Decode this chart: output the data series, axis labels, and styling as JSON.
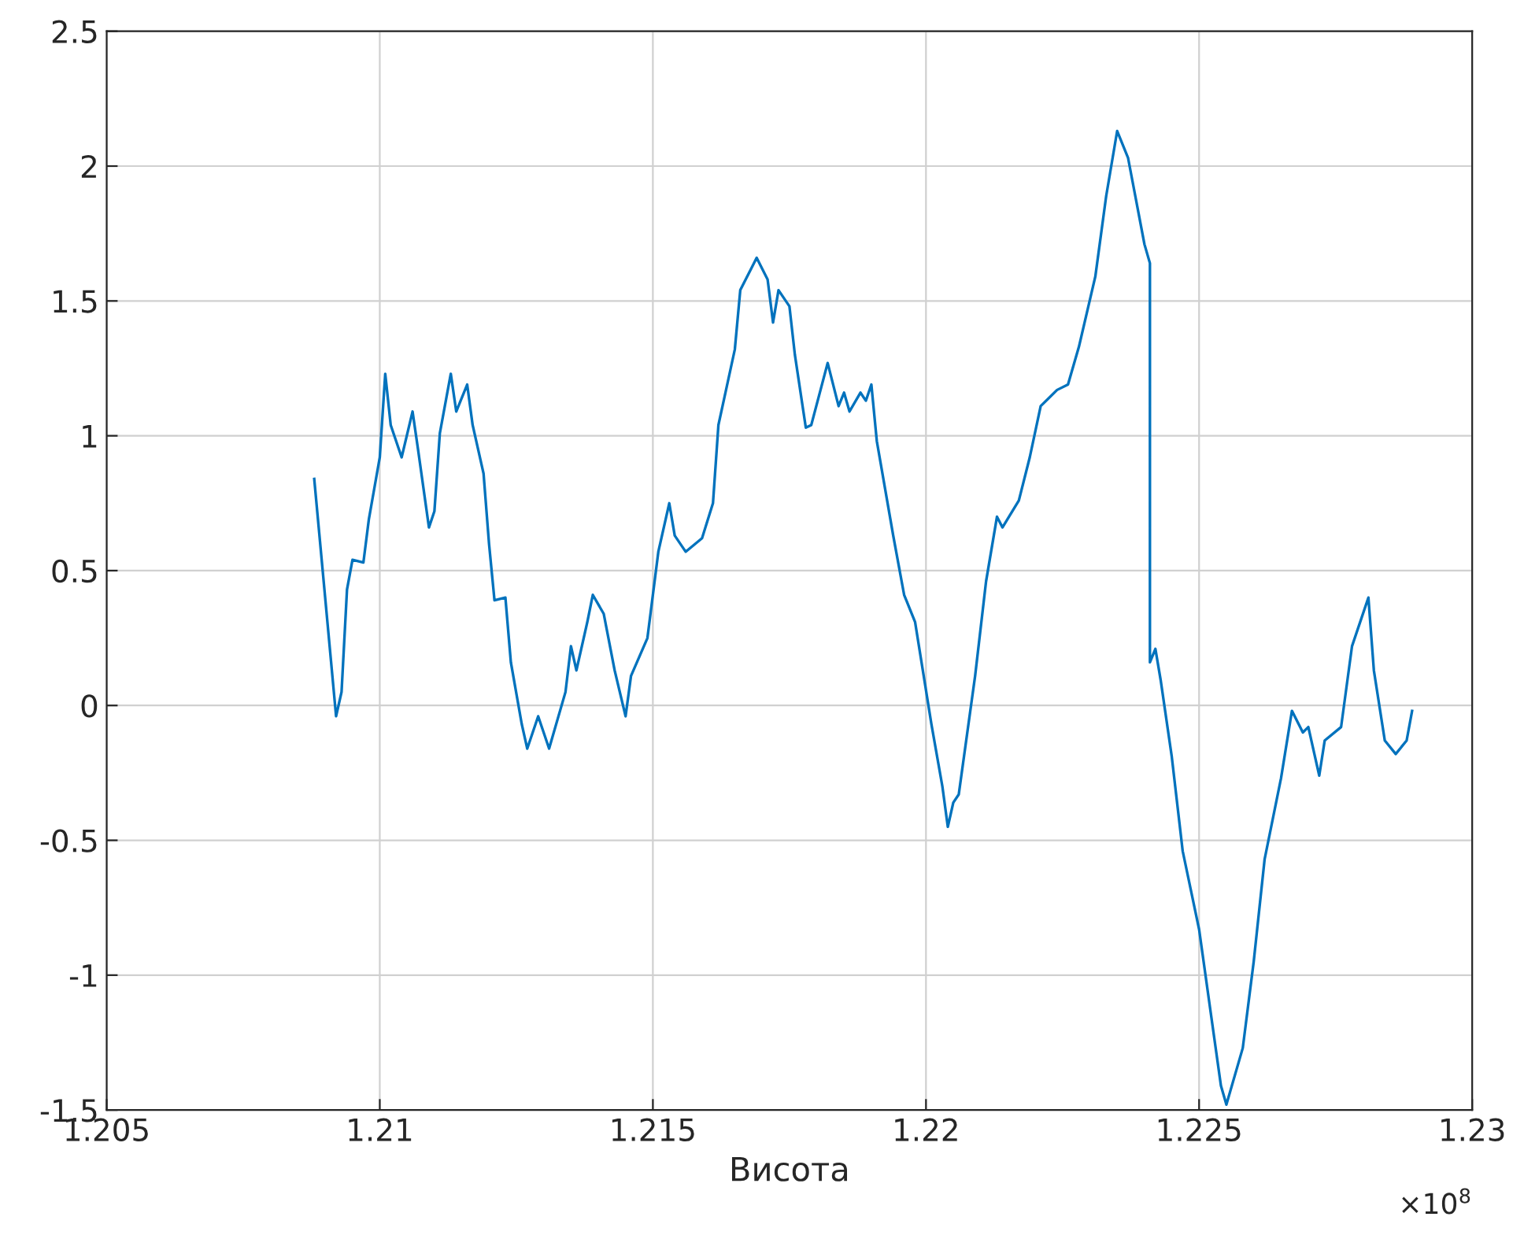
{
  "chart_data": {
    "type": "line",
    "xlabel": "Висота",
    "annotations": [
      "×10$^{8}$"
    ],
    "xlim": [
      1.205,
      1.23
    ],
    "xticks": [
      1.205,
      1.21,
      1.215,
      1.22,
      1.225,
      1.23
    ],
    "ylim": [
      -1.5,
      2.5
    ],
    "yticks": [
      -1.5,
      -1,
      -0.5,
      0,
      0.5,
      1,
      1.5,
      2,
      2.5
    ],
    "grid": true,
    "marker": "none",
    "line_style": "solid",
    "series": [
      {
        "color": "#0072bd",
        "x": [
          1.2088,
          1.209,
          1.2092,
          1.2093,
          1.2094,
          1.2095,
          1.2097,
          1.2098,
          1.21,
          1.2101,
          1.2102,
          1.2104,
          1.2106,
          1.2107,
          1.2109,
          1.211,
          1.2111,
          1.2113,
          1.2114,
          1.2116,
          1.2117,
          1.2119,
          1.212,
          1.2121,
          1.2123,
          1.2124,
          1.2126,
          1.2127,
          1.2129,
          1.2131,
          1.2134,
          1.2135,
          1.2136,
          1.2138,
          1.2139,
          1.2141,
          1.2143,
          1.2145,
          1.2146,
          1.2149,
          1.2151,
          1.2153,
          1.2154,
          1.2156,
          1.2159,
          1.2161,
          1.2162,
          1.2165,
          1.2166,
          1.2168,
          1.2169,
          1.2171,
          1.2172,
          1.2173,
          1.2175,
          1.2176,
          1.2178,
          1.2179,
          1.2182,
          1.2184,
          1.2185,
          1.2186,
          1.2188,
          1.2189,
          1.219,
          1.2191,
          1.2194,
          1.2196,
          1.2198,
          1.2201,
          1.2203,
          1.2204,
          1.2205,
          1.2206,
          1.2209,
          1.2211,
          1.2213,
          1.2214,
          1.2217,
          1.2219,
          1.2221,
          1.2224,
          1.2226,
          1.2228,
          1.2231,
          1.2233,
          1.2235,
          1.2237,
          1.224,
          1.2241,
          1.2241,
          1.2242,
          1.2243,
          1.2245,
          1.2247,
          1.225,
          1.2252,
          1.2254,
          1.2255,
          1.2258,
          1.226,
          1.2262,
          1.2265,
          1.2267,
          1.2269,
          1.227,
          1.2272,
          1.2273,
          1.2276,
          1.2278,
          1.2281,
          1.2282,
          1.2284,
          1.2286,
          1.2288,
          1.2289
        ],
        "values": [
          0.84,
          0.4,
          -0.04,
          0.05,
          0.43,
          0.54,
          0.53,
          0.69,
          0.92,
          1.23,
          1.04,
          0.92,
          1.09,
          0.95,
          0.66,
          0.72,
          1.01,
          1.23,
          1.09,
          1.19,
          1.04,
          0.86,
          0.6,
          0.39,
          0.4,
          0.16,
          -0.07,
          -0.16,
          -0.04,
          -0.16,
          0.05,
          0.22,
          0.13,
          0.31,
          0.41,
          0.34,
          0.13,
          -0.04,
          0.11,
          0.25,
          0.57,
          0.75,
          0.63,
          0.57,
          0.62,
          0.75,
          1.04,
          1.32,
          1.54,
          1.62,
          1.66,
          1.58,
          1.42,
          1.54,
          1.48,
          1.3,
          1.03,
          1.04,
          1.27,
          1.11,
          1.16,
          1.09,
          1.16,
          1.13,
          1.19,
          0.98,
          0.63,
          0.41,
          0.31,
          -0.07,
          -0.3,
          -0.45,
          -0.36,
          -0.33,
          0.11,
          0.46,
          0.7,
          0.66,
          0.76,
          0.92,
          1.11,
          1.17,
          1.19,
          1.33,
          1.59,
          1.89,
          2.13,
          2.03,
          1.71,
          1.64,
          0.16,
          0.21,
          0.09,
          -0.19,
          -0.54,
          -0.83,
          -1.12,
          -1.41,
          -1.48,
          -1.27,
          -0.95,
          -0.57,
          -0.27,
          -0.02,
          -0.1,
          -0.08,
          -0.26,
          -0.13,
          -0.08,
          0.22,
          0.4,
          0.13,
          -0.13,
          -0.18,
          -0.13,
          -0.02
        ]
      }
    ]
  }
}
